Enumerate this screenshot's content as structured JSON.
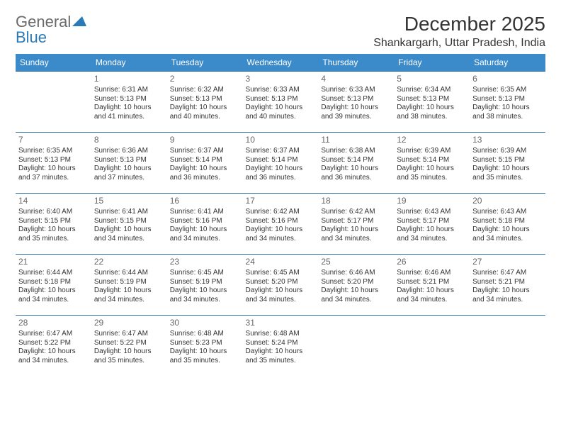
{
  "brand": {
    "name_part1": "General",
    "name_part2": "Blue"
  },
  "title": "December 2025",
  "location": "Shankargarh, Uttar Pradesh, India",
  "colors": {
    "header_bg": "#3b8aca",
    "header_text": "#ffffff",
    "row_border": "#2f6fa3",
    "body_text": "#333333",
    "daynum": "#666666",
    "brand_gray": "#6a6a6a",
    "brand_blue": "#2a7ab8",
    "background": "#ffffff"
  },
  "typography": {
    "title_fontsize": 28,
    "location_fontsize": 16,
    "dayhead_fontsize": 12,
    "cell_fontsize": 10
  },
  "day_headers": [
    "Sunday",
    "Monday",
    "Tuesday",
    "Wednesday",
    "Thursday",
    "Friday",
    "Saturday"
  ],
  "weeks": [
    [
      {
        "n": "",
        "sr": "",
        "ss": "",
        "dl": ""
      },
      {
        "n": "1",
        "sr": "Sunrise: 6:31 AM",
        "ss": "Sunset: 5:13 PM",
        "dl": "Daylight: 10 hours and 41 minutes."
      },
      {
        "n": "2",
        "sr": "Sunrise: 6:32 AM",
        "ss": "Sunset: 5:13 PM",
        "dl": "Daylight: 10 hours and 40 minutes."
      },
      {
        "n": "3",
        "sr": "Sunrise: 6:33 AM",
        "ss": "Sunset: 5:13 PM",
        "dl": "Daylight: 10 hours and 40 minutes."
      },
      {
        "n": "4",
        "sr": "Sunrise: 6:33 AM",
        "ss": "Sunset: 5:13 PM",
        "dl": "Daylight: 10 hours and 39 minutes."
      },
      {
        "n": "5",
        "sr": "Sunrise: 6:34 AM",
        "ss": "Sunset: 5:13 PM",
        "dl": "Daylight: 10 hours and 38 minutes."
      },
      {
        "n": "6",
        "sr": "Sunrise: 6:35 AM",
        "ss": "Sunset: 5:13 PM",
        "dl": "Daylight: 10 hours and 38 minutes."
      }
    ],
    [
      {
        "n": "7",
        "sr": "Sunrise: 6:35 AM",
        "ss": "Sunset: 5:13 PM",
        "dl": "Daylight: 10 hours and 37 minutes."
      },
      {
        "n": "8",
        "sr": "Sunrise: 6:36 AM",
        "ss": "Sunset: 5:13 PM",
        "dl": "Daylight: 10 hours and 37 minutes."
      },
      {
        "n": "9",
        "sr": "Sunrise: 6:37 AM",
        "ss": "Sunset: 5:14 PM",
        "dl": "Daylight: 10 hours and 36 minutes."
      },
      {
        "n": "10",
        "sr": "Sunrise: 6:37 AM",
        "ss": "Sunset: 5:14 PM",
        "dl": "Daylight: 10 hours and 36 minutes."
      },
      {
        "n": "11",
        "sr": "Sunrise: 6:38 AM",
        "ss": "Sunset: 5:14 PM",
        "dl": "Daylight: 10 hours and 36 minutes."
      },
      {
        "n": "12",
        "sr": "Sunrise: 6:39 AM",
        "ss": "Sunset: 5:14 PM",
        "dl": "Daylight: 10 hours and 35 minutes."
      },
      {
        "n": "13",
        "sr": "Sunrise: 6:39 AM",
        "ss": "Sunset: 5:15 PM",
        "dl": "Daylight: 10 hours and 35 minutes."
      }
    ],
    [
      {
        "n": "14",
        "sr": "Sunrise: 6:40 AM",
        "ss": "Sunset: 5:15 PM",
        "dl": "Daylight: 10 hours and 35 minutes."
      },
      {
        "n": "15",
        "sr": "Sunrise: 6:41 AM",
        "ss": "Sunset: 5:15 PM",
        "dl": "Daylight: 10 hours and 34 minutes."
      },
      {
        "n": "16",
        "sr": "Sunrise: 6:41 AM",
        "ss": "Sunset: 5:16 PM",
        "dl": "Daylight: 10 hours and 34 minutes."
      },
      {
        "n": "17",
        "sr": "Sunrise: 6:42 AM",
        "ss": "Sunset: 5:16 PM",
        "dl": "Daylight: 10 hours and 34 minutes."
      },
      {
        "n": "18",
        "sr": "Sunrise: 6:42 AM",
        "ss": "Sunset: 5:17 PM",
        "dl": "Daylight: 10 hours and 34 minutes."
      },
      {
        "n": "19",
        "sr": "Sunrise: 6:43 AM",
        "ss": "Sunset: 5:17 PM",
        "dl": "Daylight: 10 hours and 34 minutes."
      },
      {
        "n": "20",
        "sr": "Sunrise: 6:43 AM",
        "ss": "Sunset: 5:18 PM",
        "dl": "Daylight: 10 hours and 34 minutes."
      }
    ],
    [
      {
        "n": "21",
        "sr": "Sunrise: 6:44 AM",
        "ss": "Sunset: 5:18 PM",
        "dl": "Daylight: 10 hours and 34 minutes."
      },
      {
        "n": "22",
        "sr": "Sunrise: 6:44 AM",
        "ss": "Sunset: 5:19 PM",
        "dl": "Daylight: 10 hours and 34 minutes."
      },
      {
        "n": "23",
        "sr": "Sunrise: 6:45 AM",
        "ss": "Sunset: 5:19 PM",
        "dl": "Daylight: 10 hours and 34 minutes."
      },
      {
        "n": "24",
        "sr": "Sunrise: 6:45 AM",
        "ss": "Sunset: 5:20 PM",
        "dl": "Daylight: 10 hours and 34 minutes."
      },
      {
        "n": "25",
        "sr": "Sunrise: 6:46 AM",
        "ss": "Sunset: 5:20 PM",
        "dl": "Daylight: 10 hours and 34 minutes."
      },
      {
        "n": "26",
        "sr": "Sunrise: 6:46 AM",
        "ss": "Sunset: 5:21 PM",
        "dl": "Daylight: 10 hours and 34 minutes."
      },
      {
        "n": "27",
        "sr": "Sunrise: 6:47 AM",
        "ss": "Sunset: 5:21 PM",
        "dl": "Daylight: 10 hours and 34 minutes."
      }
    ],
    [
      {
        "n": "28",
        "sr": "Sunrise: 6:47 AM",
        "ss": "Sunset: 5:22 PM",
        "dl": "Daylight: 10 hours and 34 minutes."
      },
      {
        "n": "29",
        "sr": "Sunrise: 6:47 AM",
        "ss": "Sunset: 5:22 PM",
        "dl": "Daylight: 10 hours and 35 minutes."
      },
      {
        "n": "30",
        "sr": "Sunrise: 6:48 AM",
        "ss": "Sunset: 5:23 PM",
        "dl": "Daylight: 10 hours and 35 minutes."
      },
      {
        "n": "31",
        "sr": "Sunrise: 6:48 AM",
        "ss": "Sunset: 5:24 PM",
        "dl": "Daylight: 10 hours and 35 minutes."
      },
      {
        "n": "",
        "sr": "",
        "ss": "",
        "dl": ""
      },
      {
        "n": "",
        "sr": "",
        "ss": "",
        "dl": ""
      },
      {
        "n": "",
        "sr": "",
        "ss": "",
        "dl": ""
      }
    ]
  ]
}
